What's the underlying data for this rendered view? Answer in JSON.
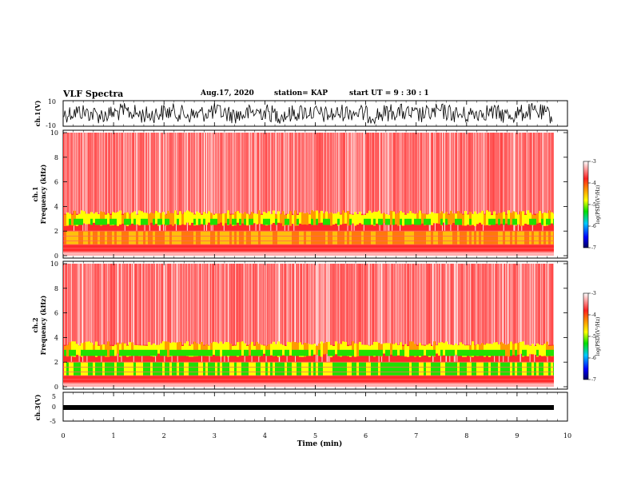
{
  "header": {
    "title": "VLF Spectra",
    "date": "Aug.17, 2020",
    "station": "station= KAP",
    "start": "start  UT =   9 : 30 : 1"
  },
  "chart_data": [
    {
      "type": "line",
      "name": "ch1-waveform",
      "ylabel": "ch.1(V)",
      "ylim": [
        -10,
        10
      ],
      "yticks": [
        "10",
        "-10"
      ],
      "xlim": [
        0,
        10
      ]
    },
    {
      "type": "heatmap",
      "name": "ch1-spectrogram",
      "ylabel_top": "ch.1",
      "ylabel": "Frequency (kHz)",
      "ylim": [
        0,
        10
      ],
      "yticks": [
        "0",
        "2",
        "4",
        "6",
        "8",
        "10"
      ],
      "xlim": [
        0,
        10
      ],
      "colorbar": {
        "label": "log(PSD)(V²/Hz)",
        "min": -7,
        "max": -3,
        "ticks": [
          "-3",
          "-4",
          "-5",
          "-6",
          "-7"
        ]
      }
    },
    {
      "type": "heatmap",
      "name": "ch2-spectrogram",
      "ylabel_top": "ch.2",
      "ylabel": "Frequency (kHz)",
      "ylim": [
        0,
        10
      ],
      "yticks": [
        "0",
        "2",
        "4",
        "6",
        "8",
        "10"
      ],
      "xlim": [
        0,
        10
      ],
      "colorbar": {
        "label": "log(PSD)(V²/Hz)",
        "min": -7,
        "max": -3,
        "ticks": [
          "-3",
          "-4",
          "-5",
          "-6",
          "-7"
        ]
      }
    },
    {
      "type": "line",
      "name": "ch3-waveform",
      "ylabel": "ch.3(V)",
      "ylim": [
        -5,
        5
      ],
      "yticks": [
        "5",
        "0",
        "-5"
      ],
      "xlim": [
        0,
        10
      ],
      "xlabel": "Time (min)",
      "xticks": [
        "0",
        "1",
        "2",
        "3",
        "4",
        "5",
        "6",
        "7",
        "8",
        "9",
        "10"
      ]
    }
  ],
  "colors": {
    "white": "#ffffff",
    "red": "#ff2020",
    "yellow": "#ffff00",
    "green": "#00e000",
    "blue": "#0000ff",
    "black": "#000000"
  }
}
